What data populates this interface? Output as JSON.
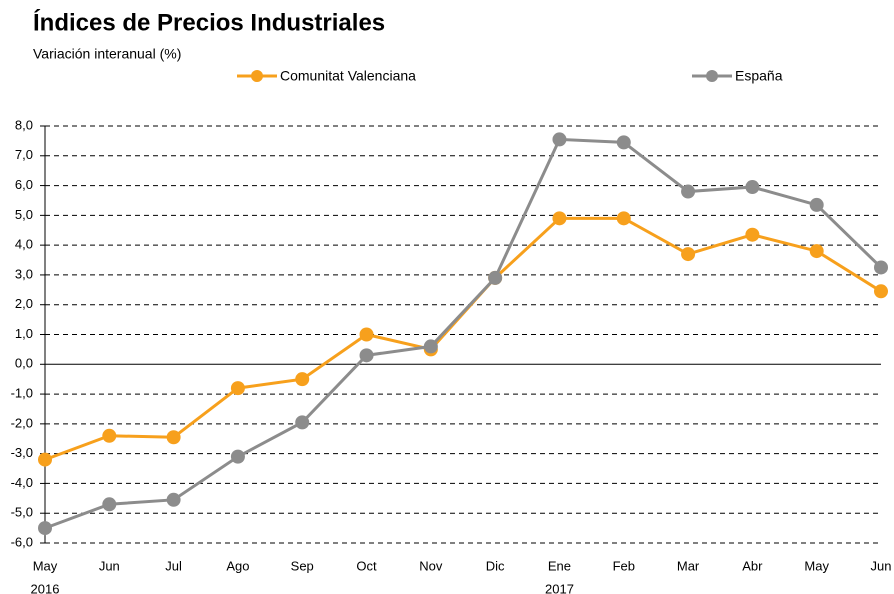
{
  "chart_data": {
    "type": "line",
    "title": "Índices de Precios Industriales",
    "subtitle": "Variación interanual (%)",
    "categories": [
      "May",
      "Jun",
      "Jul",
      "Ago",
      "Sep",
      "Oct",
      "Nov",
      "Dic",
      "Ene",
      "Feb",
      "Mar",
      "Abr",
      "May",
      "Jun"
    ],
    "category_years": [
      "2016",
      null,
      null,
      null,
      null,
      null,
      null,
      null,
      "2017",
      null,
      null,
      null,
      null,
      null
    ],
    "series": [
      {
        "name": "Comunitat Valenciana",
        "color": "#f7a01c",
        "values": [
          -3.2,
          -2.4,
          -2.45,
          -0.8,
          -0.5,
          1.0,
          0.5,
          2.9,
          4.9,
          4.9,
          3.7,
          4.35,
          3.8,
          2.45
        ]
      },
      {
        "name": "España",
        "color": "#8c8c8c",
        "values": [
          -5.5,
          -4.7,
          -4.55,
          -3.1,
          -1.95,
          0.3,
          0.6,
          2.9,
          7.55,
          7.45,
          5.8,
          5.95,
          5.35,
          3.25
        ]
      }
    ],
    "ylim": [
      -6,
      8
    ],
    "yticks": [
      {
        "value": -6,
        "label": "-6,0"
      },
      {
        "value": -5,
        "label": "-5,0"
      },
      {
        "value": -4,
        "label": "-4,0"
      },
      {
        "value": -3,
        "label": "-3,0"
      },
      {
        "value": -2,
        "label": "-2,0"
      },
      {
        "value": -1,
        "label": "-1,0"
      },
      {
        "value": 0,
        "label": "0,0"
      },
      {
        "value": 1,
        "label": "1,0"
      },
      {
        "value": 2,
        "label": "2,0"
      },
      {
        "value": 3,
        "label": "3,0"
      },
      {
        "value": 4,
        "label": "4,0"
      },
      {
        "value": 5,
        "label": "5,0"
      },
      {
        "value": 6,
        "label": "6,0"
      },
      {
        "value": 7,
        "label": "7,0"
      },
      {
        "value": 8,
        "label": "8,0"
      }
    ],
    "grid": true
  }
}
